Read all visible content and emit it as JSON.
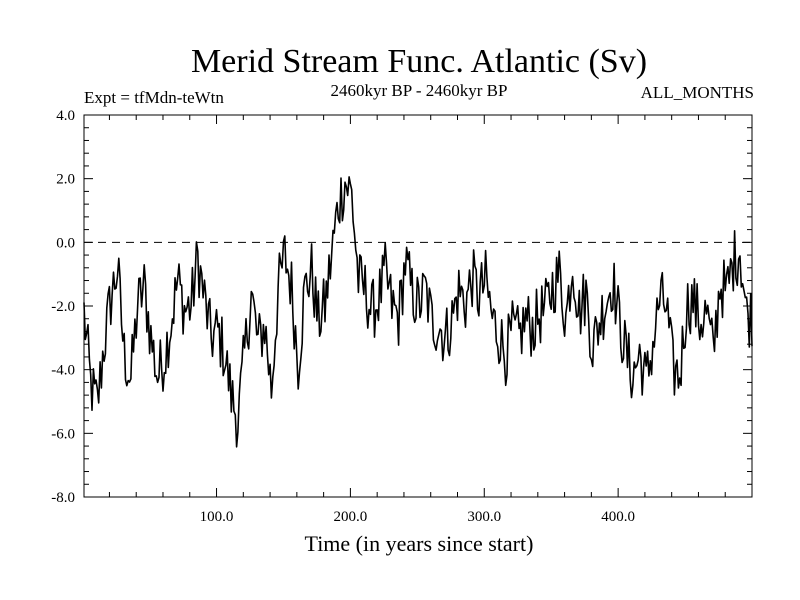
{
  "chart_data": {
    "type": "line",
    "title": "Merid Stream Func. Atlantic (Sv)",
    "subtitle_left": "Expt = tfMdn-teWtn",
    "subtitle_center": "2460kyr BP - 2460kyr BP",
    "subtitle_right": "ALL_MONTHS",
    "xlabel": "Time (in years since start)",
    "ylabel": "",
    "xlim": [
      1,
      500
    ],
    "ylim": [
      -8,
      4
    ],
    "x_ticks": [
      100,
      200,
      300,
      400
    ],
    "x_tick_labels": [
      "100.0",
      "200.0",
      "300.0",
      "400.0"
    ],
    "y_ticks": [
      4,
      2,
      0,
      -2,
      -4,
      -6,
      -8
    ],
    "y_tick_labels": [
      "4.0",
      "2.0",
      "0.0",
      "-2.0",
      "-4.0",
      "-6.0",
      "-8.0"
    ],
    "reference_line": 0,
    "series": [
      {
        "name": "Merid Stream Func. Atlantic",
        "x_start": 1,
        "x_step": 5,
        "values": [
          -2.2,
          -4.5,
          -5.1,
          -3.2,
          -1.8,
          -0.8,
          -3.5,
          -4.3,
          -2.0,
          -1.4,
          -3.0,
          -4.2,
          -3.6,
          -2.5,
          -1.2,
          -2.1,
          -2.0,
          -0.5,
          -1.8,
          -3.0,
          -2.8,
          -3.5,
          -4.8,
          -5.6,
          -3.5,
          -1.6,
          -3.2,
          -2.6,
          -4.6,
          -1.5,
          -0.4,
          -1.4,
          -3.8,
          -1.5,
          -0.9,
          -2.5,
          -2.0,
          -0.4,
          1.2,
          1.9,
          1.5,
          -1.2,
          -1.5,
          -2.2,
          -1.8,
          -1.0,
          -2.0,
          -2.4,
          -0.6,
          -1.6,
          -2.0,
          -1.5,
          -2.5,
          -2.6,
          -3.0,
          -2.4,
          -1.5,
          -1.9,
          -1.1,
          -1.7,
          -1.2,
          -2.4,
          -2.9,
          -3.5,
          -2.8,
          -3.0,
          -2.4,
          -2.7,
          -2.3,
          -2.1,
          -1.4,
          -1.0,
          -2.4,
          -0.6,
          -2.2,
          -1.6,
          -3.3,
          -2.5,
          -1.8,
          -1.2,
          -2.5,
          -3.5,
          -4.2,
          -3.5,
          -4.4,
          -3.2,
          -1.8,
          -2.0,
          -4.0,
          -4.2,
          -2.0,
          -1.8,
          -2.5,
          -2.2,
          -3.5,
          -1.3,
          -1.6,
          -0.6,
          -0.2,
          -2.3
        ],
        "note": "Representative 5-year samples of the plotted monthly/annual series; values read from the figure"
      }
    ]
  }
}
